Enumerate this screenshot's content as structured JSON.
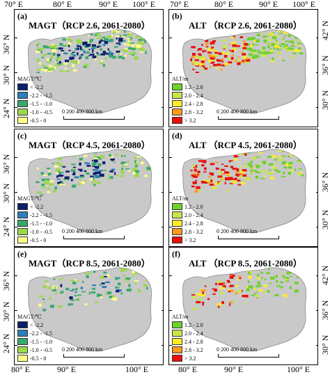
{
  "axes": {
    "top_lon": [
      "70° E",
      "80° E",
      "90° E",
      "100° E",
      "70° E",
      "80° E",
      "90° E",
      "100° E"
    ],
    "bottom_lon": [
      "80° E",
      "90° E",
      "100° E",
      "80° E",
      "90° E",
      "100° E"
    ],
    "left_lat": [
      "36° N",
      "30° N",
      "24° N",
      "36° N",
      "30° N",
      "24° N",
      "36° N",
      "30° N",
      "24° N"
    ],
    "right_lat": [
      "42° N",
      "36° N",
      "30° N",
      "36° N",
      "30° N",
      "42° N",
      "36° N",
      "30° N"
    ]
  },
  "panels": [
    {
      "letter": "(a)",
      "title": "MAGT（RCP 2.6,  2061-2080）",
      "type": "magt"
    },
    {
      "letter": "(b)",
      "title": "ALT （RCP 2.6,  2061-2080）",
      "type": "alt"
    },
    {
      "letter": "(c)",
      "title": "MAGT（RCP 4.5, 2061-2080）",
      "type": "magt"
    },
    {
      "letter": "(d)",
      "title": "ALT （RCP 4.5, 2061-2080）",
      "type": "alt"
    },
    {
      "letter": "(e)",
      "title": "MAGT（RCP 8.5, 2061-2080）",
      "type": "magt"
    },
    {
      "letter": "(f)",
      "title": "ALT （RCP 8.5, 2061-2080）",
      "type": "alt"
    }
  ],
  "legend_magt": {
    "unit": "MAGT/℃",
    "classes": [
      "< -2.2",
      "-2.2 - -1.5",
      "-1.5 - -1.0",
      "-1.0 - -0.5",
      "-0.5 - 0"
    ],
    "colors": [
      "#0b1f6b",
      "#2c7fb8",
      "#39a96b",
      "#9bd84a",
      "#ffff88"
    ]
  },
  "legend_alt": {
    "unit": "ALT/m",
    "classes": [
      "1.2 - 2.0",
      "2.0 - 2.4",
      "2.4 - 2.8",
      "2.8 - 3.2",
      "> 3.2"
    ],
    "colors": [
      "#6ed12e",
      "#c8e64a",
      "#ffeb2a",
      "#ff9a1a",
      "#e8100a"
    ]
  },
  "scale_bar": {
    "labels": "0   200 400       800 km"
  },
  "colors": {
    "plateau": "#c9c9c9",
    "plateau_edge": "#888888",
    "frame": "#000000"
  }
}
